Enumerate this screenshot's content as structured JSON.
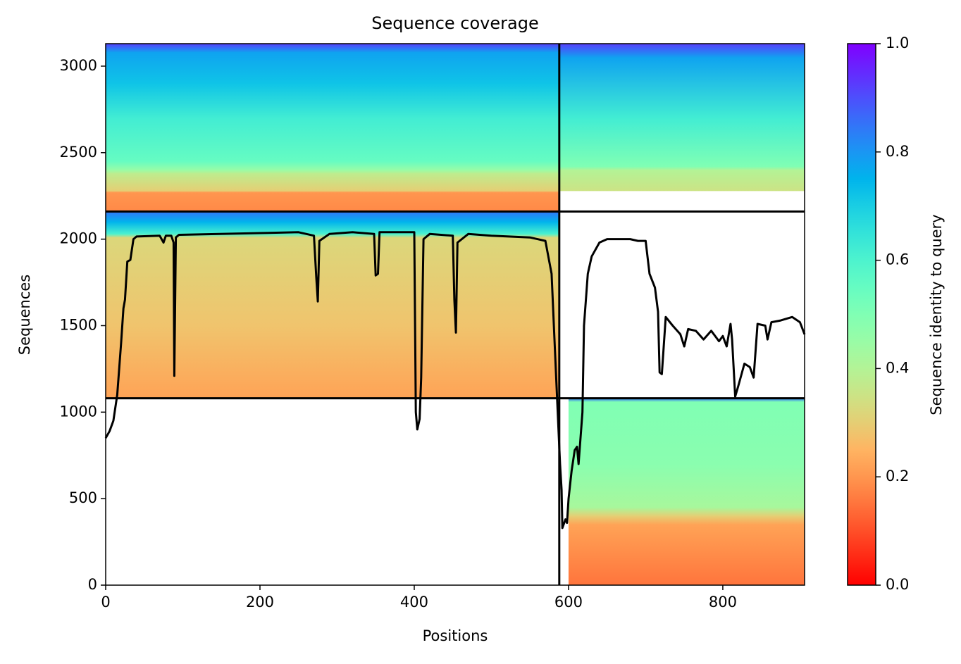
{
  "chart_data": {
    "type": "coverage",
    "title": "Sequence coverage",
    "xlabel": "Positions",
    "ylabel": "Sequences",
    "colorbar_label": "Sequence identity to query",
    "xlim": [
      0,
      906
    ],
    "ylim": [
      0,
      3130
    ],
    "xticks": [
      0,
      200,
      400,
      600,
      800
    ],
    "yticks": [
      0,
      500,
      1000,
      1500,
      2000,
      2500,
      3000
    ],
    "colorbar_lim": [
      0,
      1
    ],
    "colorbar_ticks": [
      {
        "value": 0,
        "label": "0.0"
      },
      {
        "value": 0.2,
        "label": "0.2"
      },
      {
        "value": 0.4,
        "label": "0.4"
      },
      {
        "value": 0.6,
        "label": "0.6"
      },
      {
        "value": 0.8,
        "label": "0.8"
      },
      {
        "value": 1,
        "label": "1.0"
      }
    ],
    "dividers": {
      "x": [
        588
      ],
      "y": [
        1080,
        2160
      ]
    },
    "blocks": [
      {
        "x": [
          0,
          588
        ],
        "stops": [
          [
            3130,
            0.92
          ],
          [
            3080,
            0.78
          ],
          [
            2900,
            0.72
          ],
          [
            2700,
            0.62
          ],
          [
            2450,
            0.55
          ],
          [
            2400,
            0.45
          ],
          [
            2380,
            0.38
          ],
          [
            2280,
            0.3
          ],
          [
            2270,
            0.2
          ],
          [
            2160,
            0.18
          ]
        ]
      },
      {
        "x": [
          588,
          906
        ],
        "stops": [
          [
            3130,
            0.92
          ],
          [
            3050,
            0.78
          ],
          [
            2700,
            0.62
          ],
          [
            2420,
            0.5
          ],
          [
            2400,
            0.4
          ],
          [
            2280,
            0.35
          ]
        ]
      },
      {
        "x": [
          0,
          588
        ],
        "stops": [
          [
            2160,
            0.85
          ],
          [
            2100,
            0.75
          ],
          [
            2030,
            0.6
          ],
          [
            2010,
            0.32
          ],
          [
            1500,
            0.28
          ],
          [
            1080,
            0.22
          ]
        ]
      },
      {
        "x": [
          600,
          906
        ],
        "stops": [
          [
            1080,
            0.85
          ],
          [
            1060,
            0.5
          ],
          [
            700,
            0.48
          ],
          [
            450,
            0.42
          ],
          [
            400,
            0.3
          ],
          [
            350,
            0.22
          ],
          [
            0,
            0.15
          ]
        ]
      }
    ],
    "line_color": "#000000",
    "x": [
      0,
      5,
      10,
      15,
      20,
      23,
      25,
      28,
      32,
      36,
      40,
      70,
      75,
      78,
      85,
      88,
      89,
      91,
      95,
      200,
      250,
      270,
      273,
      275,
      277,
      290,
      320,
      348,
      350,
      353,
      355,
      400,
      402,
      404,
      407,
      409,
      412,
      420,
      450,
      452,
      454,
      456,
      470,
      500,
      550,
      570,
      578,
      583,
      586,
      589,
      591,
      592,
      596,
      598,
      600,
      604,
      608,
      611,
      613,
      618,
      620,
      625,
      630,
      640,
      650,
      680,
      690,
      700,
      705,
      712,
      716,
      718,
      721,
      726,
      735,
      745,
      750,
      755,
      765,
      775,
      785,
      795,
      800,
      805,
      810,
      812,
      816,
      820,
      828,
      835,
      840,
      845,
      855,
      858,
      863,
      875,
      890,
      900,
      906
    ],
    "values": [
      850,
      890,
      950,
      1100,
      1400,
      1600,
      1650,
      1870,
      1880,
      2000,
      2015,
      2020,
      1980,
      2020,
      2020,
      1980,
      1210,
      2010,
      2025,
      2035,
      2040,
      2020,
      1780,
      1640,
      1990,
      2030,
      2040,
      2030,
      1790,
      1800,
      2040,
      2040,
      1000,
      900,
      960,
      1200,
      2000,
      2030,
      2020,
      1650,
      1460,
      1980,
      2030,
      2020,
      2010,
      1990,
      1800,
      1300,
      1000,
      700,
      550,
      330,
      380,
      360,
      500,
      660,
      780,
      800,
      700,
      1000,
      1500,
      1800,
      1900,
      1980,
      2000,
      2000,
      1990,
      1990,
      1800,
      1720,
      1580,
      1230,
      1220,
      1550,
      1500,
      1450,
      1380,
      1480,
      1470,
      1420,
      1470,
      1410,
      1440,
      1380,
      1510,
      1420,
      1090,
      1150,
      1280,
      1260,
      1200,
      1510,
      1500,
      1420,
      1520,
      1530,
      1550,
      1520,
      1450
    ]
  }
}
